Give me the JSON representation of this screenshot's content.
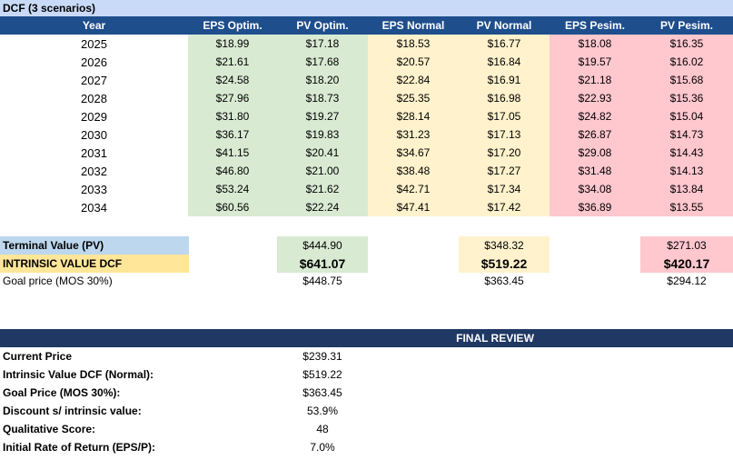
{
  "title": "DCF (3 scenarios)",
  "table": {
    "headers": [
      "Year",
      "EPS Optim.",
      "PV Optim.",
      "EPS Normal",
      "PV Normal",
      "EPS Pesim.",
      "PV Pesim."
    ],
    "rows": [
      [
        "2025",
        "$18.99",
        "$17.18",
        "$18.53",
        "$16.77",
        "$18.08",
        "$16.35"
      ],
      [
        "2026",
        "$21.61",
        "$17.68",
        "$20.57",
        "$16.84",
        "$19.57",
        "$16.02"
      ],
      [
        "2027",
        "$24.58",
        "$18.20",
        "$22.84",
        "$16.91",
        "$21.18",
        "$15.68"
      ],
      [
        "2028",
        "$27.96",
        "$18.73",
        "$25.35",
        "$16.98",
        "$22.93",
        "$15.36"
      ],
      [
        "2029",
        "$31.80",
        "$19.27",
        "$28.14",
        "$17.05",
        "$24.82",
        "$15.04"
      ],
      [
        "2030",
        "$36.17",
        "$19.83",
        "$31.23",
        "$17.13",
        "$26.87",
        "$14.73"
      ],
      [
        "2031",
        "$41.15",
        "$20.41",
        "$34.67",
        "$17.20",
        "$29.08",
        "$14.43"
      ],
      [
        "2032",
        "$46.80",
        "$21.00",
        "$38.48",
        "$17.27",
        "$31.48",
        "$14.13"
      ],
      [
        "2033",
        "$53.24",
        "$21.62",
        "$42.71",
        "$17.34",
        "$34.08",
        "$13.84"
      ],
      [
        "2034",
        "$60.56",
        "$22.24",
        "$47.41",
        "$17.42",
        "$36.89",
        "$13.55"
      ]
    ]
  },
  "summary": {
    "rows": [
      {
        "label": "Terminal Value (PV)",
        "values": [
          "$444.90",
          "$348.32",
          "$271.03"
        ]
      },
      {
        "label": "INTRINSIC VALUE DCF",
        "values": [
          "$641.07",
          "$519.22",
          "$420.17"
        ]
      },
      {
        "label": "Goal price (MOS 30%)",
        "values": [
          "$448.75",
          "$363.45",
          "$294.12"
        ]
      }
    ]
  },
  "final_review": {
    "title": "FINAL REVIEW",
    "rows": [
      [
        "Current Price",
        "$239.31"
      ],
      [
        "Intrinsic Value DCF (Normal):",
        "$519.22"
      ],
      [
        "Goal Price (MOS 30%):",
        "$363.45"
      ],
      [
        "Discount s/ intrinsic value:",
        "53.9%"
      ],
      [
        "Qualitative Score:",
        "48"
      ],
      [
        "Initial Rate of Return (EPS/P):",
        "7.0%"
      ]
    ]
  }
}
